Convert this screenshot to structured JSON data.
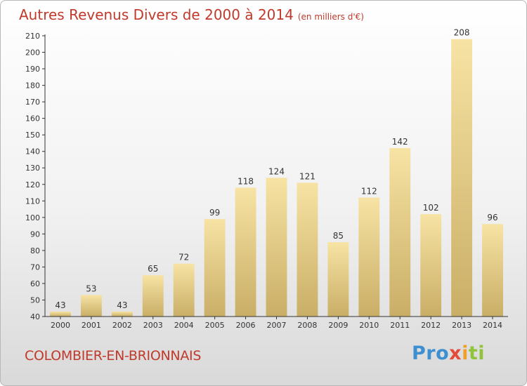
{
  "title": "Autres Revenus Divers de 2000 à 2014",
  "unit": "(en milliers d'€)",
  "commune": "COLOMBIER-EN-BRIONNAIS",
  "logo": {
    "p1": "Pro",
    "p2": "x",
    "p3": "i",
    "p4": "ti"
  },
  "colors": {
    "title": "#c0392b",
    "bar_light": "#f7e3a4",
    "bar_dark": "#c9ae66",
    "axis": "#333333"
  },
  "chart_data": {
    "type": "bar",
    "title": "Autres Revenus Divers de 2000 à 2014",
    "categories": [
      "2000",
      "2001",
      "2002",
      "2003",
      "2004",
      "2005",
      "2006",
      "2007",
      "2008",
      "2009",
      "2010",
      "2011",
      "2012",
      "2013",
      "2014"
    ],
    "values": [
      43,
      53,
      43,
      65,
      72,
      99,
      118,
      124,
      121,
      85,
      112,
      142,
      102,
      208,
      96
    ],
    "ylim": [
      40,
      210
    ],
    "yticks": [
      40,
      50,
      60,
      70,
      80,
      90,
      100,
      110,
      120,
      130,
      140,
      150,
      160,
      170,
      180,
      190,
      200,
      210
    ],
    "grid": false,
    "xlabel": "",
    "ylabel": ""
  }
}
